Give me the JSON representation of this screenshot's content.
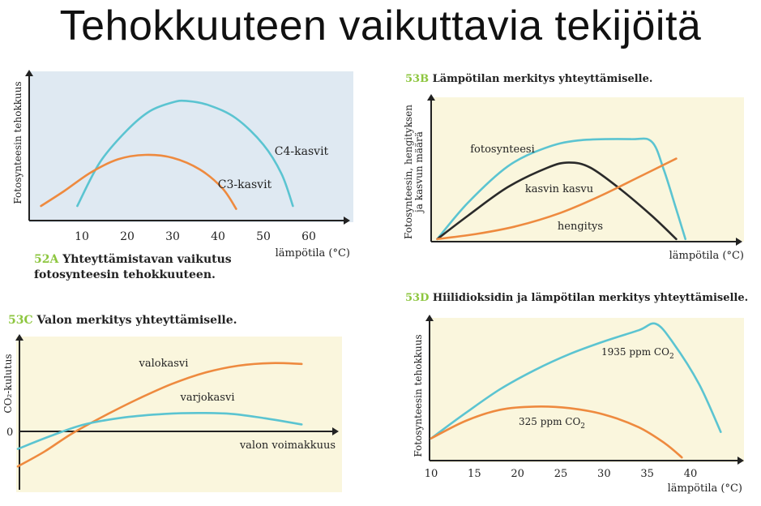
{
  "title": "Tehokkuuteen vaikuttavia tekijöitä",
  "colors": {
    "cyan": "#5bc4d1",
    "orange": "#ee8a3f",
    "black": "#2a2a2a",
    "axis": "#222222",
    "panel_blue": "#dfe9f2",
    "panel_yellow": "#faf6dd",
    "caption_number": "#8dc63f"
  },
  "chart_data": [
    {
      "id": "52A",
      "type": "line",
      "caption_number": "52A",
      "caption_line1": "Yhteyttämistavan vaikutus",
      "caption_line2": "fotosynteesin tehokkuuteen.",
      "ylabel": "Fotosynteesin tehokkuus",
      "xlabel": "lämpötila (°C)",
      "xticks": [
        "10",
        "20",
        "30",
        "40",
        "50",
        "60"
      ],
      "xlim": [
        5,
        65
      ],
      "series": [
        {
          "name": "C4-kasvit",
          "color": "cyan",
          "points": [
            [
              9,
              0.1
            ],
            [
              14,
              0.4
            ],
            [
              20,
              0.62
            ],
            [
              25,
              0.75
            ],
            [
              30,
              0.81
            ],
            [
              33,
              0.82
            ],
            [
              38,
              0.79
            ],
            [
              44,
              0.7
            ],
            [
              50,
              0.52
            ],
            [
              54,
              0.32
            ],
            [
              56.5,
              0.1
            ]
          ]
        },
        {
          "name": "C3-kasvit",
          "color": "orange",
          "points": [
            [
              1,
              0.1
            ],
            [
              6,
              0.2
            ],
            [
              12,
              0.33
            ],
            [
              18,
              0.42
            ],
            [
              24,
              0.45
            ],
            [
              30,
              0.43
            ],
            [
              36,
              0.35
            ],
            [
              41,
              0.22
            ],
            [
              44,
              0.08
            ]
          ]
        }
      ]
    },
    {
      "id": "53B",
      "type": "line",
      "caption_number": "53B",
      "caption_text": "Lämpötilan merkitys yhteyttämiselle.",
      "ylabel_line1": "Fotosynteesin, hengityksen",
      "ylabel_line2": "ja kasvun määrä",
      "xlabel": "lämpötila (°C)",
      "series": [
        {
          "name": "fotosynteesi",
          "color": "cyan",
          "points": [
            [
              0.02,
              0.02
            ],
            [
              0.12,
              0.3
            ],
            [
              0.25,
              0.58
            ],
            [
              0.37,
              0.72
            ],
            [
              0.48,
              0.78
            ],
            [
              0.65,
              0.79
            ],
            [
              0.72,
              0.77
            ],
            [
              0.76,
              0.55
            ],
            [
              0.8,
              0.25
            ],
            [
              0.83,
              0.02
            ]
          ]
        },
        {
          "name": "kasvin kasvu",
          "color": "black",
          "points": [
            [
              0.02,
              0.02
            ],
            [
              0.12,
              0.2
            ],
            [
              0.25,
              0.42
            ],
            [
              0.38,
              0.57
            ],
            [
              0.45,
              0.61
            ],
            [
              0.52,
              0.57
            ],
            [
              0.62,
              0.4
            ],
            [
              0.72,
              0.2
            ],
            [
              0.8,
              0.02
            ]
          ]
        },
        {
          "name": "hengitys",
          "color": "orange",
          "points": [
            [
              0.02,
              0.02
            ],
            [
              0.15,
              0.06
            ],
            [
              0.28,
              0.12
            ],
            [
              0.42,
              0.22
            ],
            [
              0.55,
              0.35
            ],
            [
              0.68,
              0.5
            ],
            [
              0.8,
              0.64
            ]
          ]
        }
      ]
    },
    {
      "id": "53C",
      "type": "line",
      "caption_number": "53C",
      "caption_text": "Valon merkitys yhteyttämiselle.",
      "ylabel": "CO₂-kulutus",
      "zero_label": "0",
      "xlabel": "valon voimakkuus",
      "series": [
        {
          "name": "valokasvi",
          "color": "orange",
          "points": [
            [
              0.0,
              -0.4
            ],
            [
              0.08,
              -0.23
            ],
            [
              0.16,
              -0.03
            ],
            [
              0.26,
              0.18
            ],
            [
              0.36,
              0.37
            ],
            [
              0.46,
              0.54
            ],
            [
              0.56,
              0.67
            ],
            [
              0.66,
              0.75
            ],
            [
              0.76,
              0.78
            ],
            [
              0.85,
              0.77
            ]
          ]
        },
        {
          "name": "varjokasvi",
          "color": "cyan",
          "points": [
            [
              0.0,
              -0.2
            ],
            [
              0.1,
              -0.05
            ],
            [
              0.2,
              0.08
            ],
            [
              0.32,
              0.16
            ],
            [
              0.44,
              0.2
            ],
            [
              0.54,
              0.21
            ],
            [
              0.64,
              0.2
            ],
            [
              0.74,
              0.15
            ],
            [
              0.85,
              0.08
            ]
          ]
        }
      ]
    },
    {
      "id": "53D",
      "type": "line",
      "caption_number": "53D",
      "caption_text": "Hiilidioksidin ja lämpötilan merkitys yhteyttämiselle.",
      "ylabel": "Fotosynteesin tehokkuus",
      "xlabel": "lämpötila (°C)",
      "xticks": [
        "10",
        "15",
        "20",
        "25",
        "30",
        "35",
        "40"
      ],
      "xlim": [
        10,
        44
      ],
      "series": [
        {
          "name": "1935 ppm CO",
          "subscript": "2",
          "color": "cyan",
          "points": [
            [
              10,
              0.14
            ],
            [
              14,
              0.3
            ],
            [
              18,
              0.45
            ],
            [
              22,
              0.57
            ],
            [
              26,
              0.67
            ],
            [
              30,
              0.75
            ],
            [
              34,
              0.82
            ],
            [
              36,
              0.86
            ],
            [
              38,
              0.74
            ],
            [
              41,
              0.48
            ],
            [
              43.5,
              0.18
            ]
          ]
        },
        {
          "name": "325 ppm CO",
          "subscript": "2",
          "color": "orange",
          "points": [
            [
              10,
              0.14
            ],
            [
              14,
              0.25
            ],
            [
              18,
              0.32
            ],
            [
              22,
              0.34
            ],
            [
              26,
              0.33
            ],
            [
              30,
              0.29
            ],
            [
              34,
              0.21
            ],
            [
              37,
              0.11
            ],
            [
              39,
              0.02
            ]
          ]
        }
      ]
    }
  ]
}
